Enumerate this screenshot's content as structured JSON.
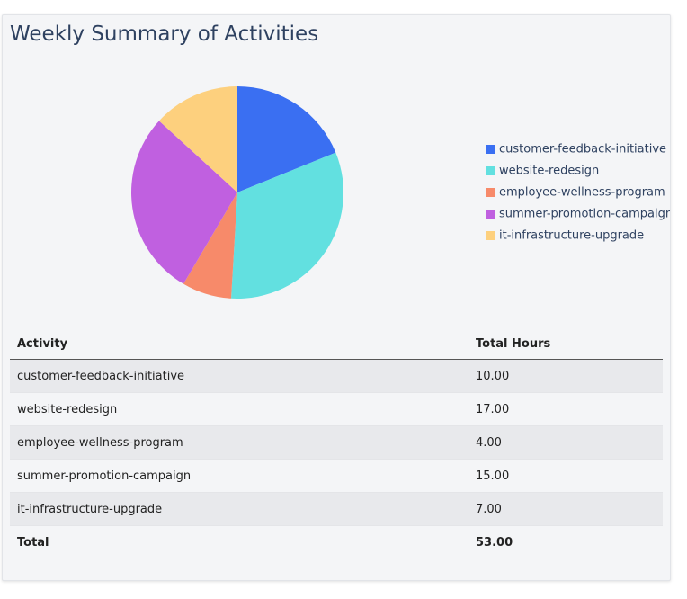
{
  "title": "Weekly Summary of Activities",
  "chart_data": {
    "type": "pie",
    "categories": [
      "customer-feedback-initiative",
      "website-redesign",
      "employee-wellness-program",
      "summer-promotion-campaign",
      "it-infrastructure-upgrade"
    ],
    "values": [
      10,
      17,
      4,
      15,
      7
    ],
    "colors": [
      "#3a6ff2",
      "#62e0e0",
      "#f78a6a",
      "#c060e0",
      "#fdd07e"
    ],
    "legend": "right"
  },
  "table": {
    "header": [
      "Activity",
      "Total Hours"
    ],
    "rows": [
      [
        "customer-feedback-initiative",
        "10.00"
      ],
      [
        "website-redesign",
        "17.00"
      ],
      [
        "employee-wellness-program",
        "4.00"
      ],
      [
        "summer-promotion-campaign",
        "15.00"
      ],
      [
        "it-infrastructure-upgrade",
        "7.00"
      ]
    ],
    "total": [
      "Total",
      "53.00"
    ]
  }
}
